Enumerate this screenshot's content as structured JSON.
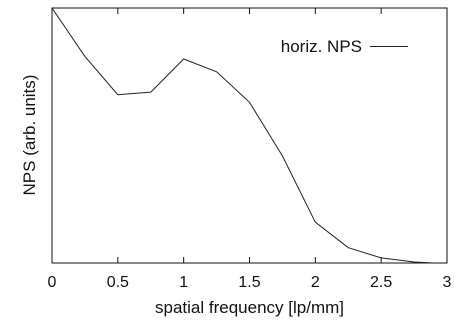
{
  "chart_data": {
    "type": "line",
    "xlabel": "spatial frequency [lp/mm]",
    "ylabel": "NPS (arb. units)",
    "xlim": [
      0,
      3
    ],
    "x_ticks": [
      "0",
      "0.5",
      "1",
      "1.5",
      "2",
      "2.5",
      "3"
    ],
    "y_ticks": [],
    "ylim": [
      0,
      1
    ],
    "grid": false,
    "legend_position": "top-right",
    "series": [
      {
        "name": "horiz. NPS",
        "x": [
          0,
          0.25,
          0.5,
          0.75,
          1.0,
          1.25,
          1.5,
          1.75,
          2.0,
          2.25,
          2.5,
          2.75,
          2.9
        ],
        "y": [
          1.0,
          0.81,
          0.66,
          0.67,
          0.8,
          0.75,
          0.63,
          0.42,
          0.16,
          0.06,
          0.02,
          0.004,
          0.0
        ]
      }
    ]
  }
}
